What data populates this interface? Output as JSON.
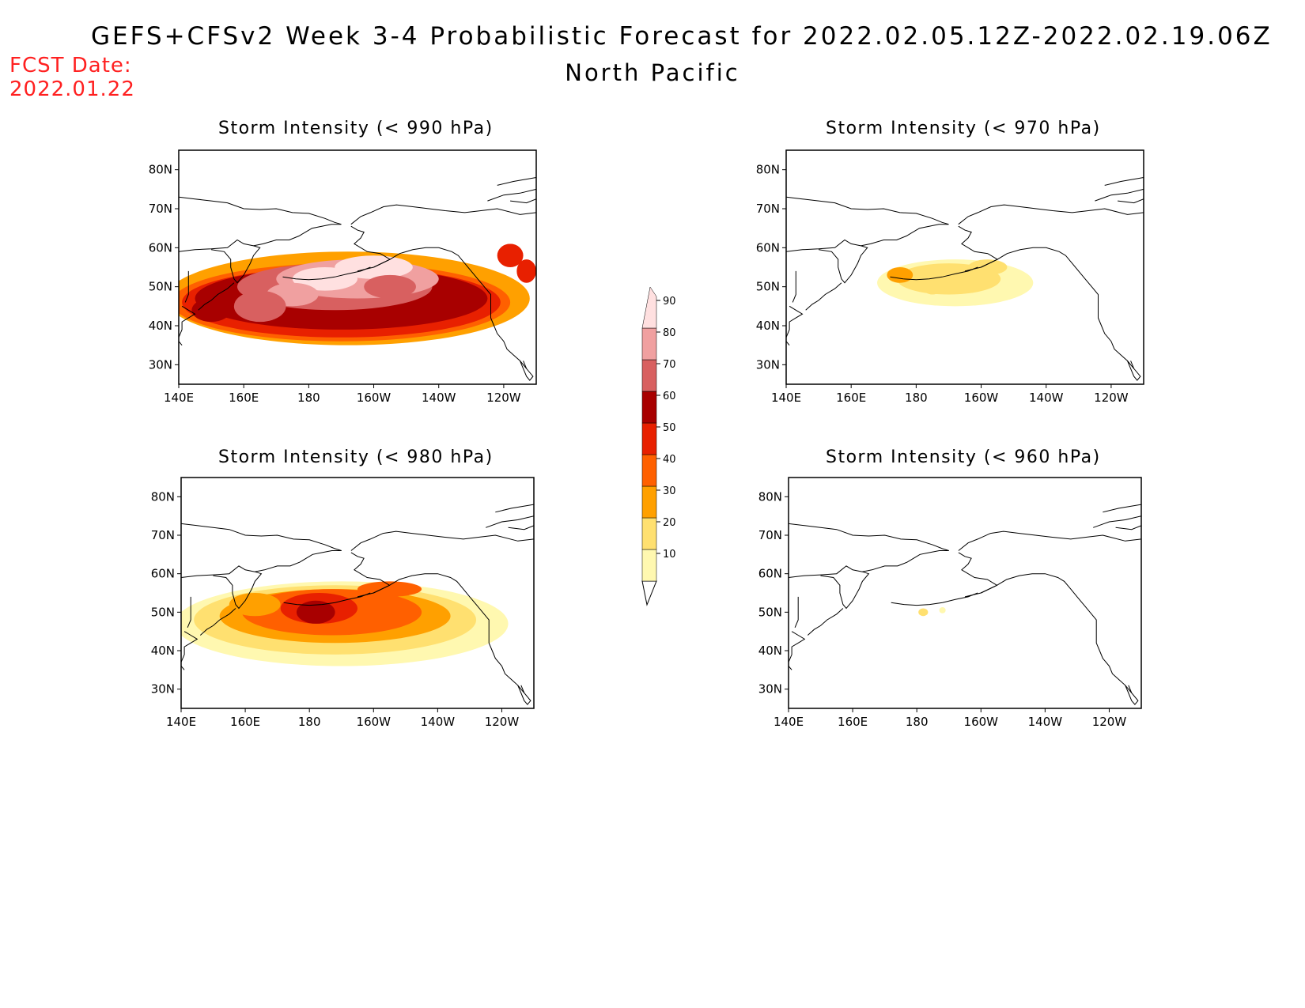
{
  "figure": {
    "title": "GEFS+CFSv2 Week 3-4 Probabilistic Forecast for 2022.02.05.12Z-2022.02.19.06Z",
    "subtitle": "North Pacific",
    "fcst_label": "FCST Date:",
    "fcst_date": "2022.01.22"
  },
  "colorbar": {
    "levels": [
      "10",
      "20",
      "30",
      "40",
      "50",
      "60",
      "70",
      "80",
      "90"
    ],
    "colors": [
      "#fff8b0",
      "#ffe070",
      "#ffa000",
      "#ff6000",
      "#e82000",
      "#a80000",
      "#d86060",
      "#f0a0a0",
      "#ffe0e0"
    ]
  },
  "axes": {
    "lon_ticks": [
      "140E",
      "160E",
      "180",
      "160W",
      "140W",
      "120W"
    ],
    "lat_ticks": [
      "80N",
      "70N",
      "60N",
      "50N",
      "40N",
      "30N"
    ]
  },
  "panels": [
    {
      "id": "p990",
      "title": "Storm Intensity (< 990 hPa)",
      "intensity": "high"
    },
    {
      "id": "p970",
      "title": "Storm Intensity (< 970 hPa)",
      "intensity": "low"
    },
    {
      "id": "p980",
      "title": "Storm Intensity (< 980 hPa)",
      "intensity": "medium"
    },
    {
      "id": "p960",
      "title": "Storm Intensity (< 960 hPa)",
      "intensity": "minimal"
    }
  ],
  "chart_data": {
    "type": "heatmap",
    "variable": "probability (%)",
    "lon_range": [
      "140E",
      "110W"
    ],
    "lat_range": [
      "25N",
      "85N"
    ]
  }
}
